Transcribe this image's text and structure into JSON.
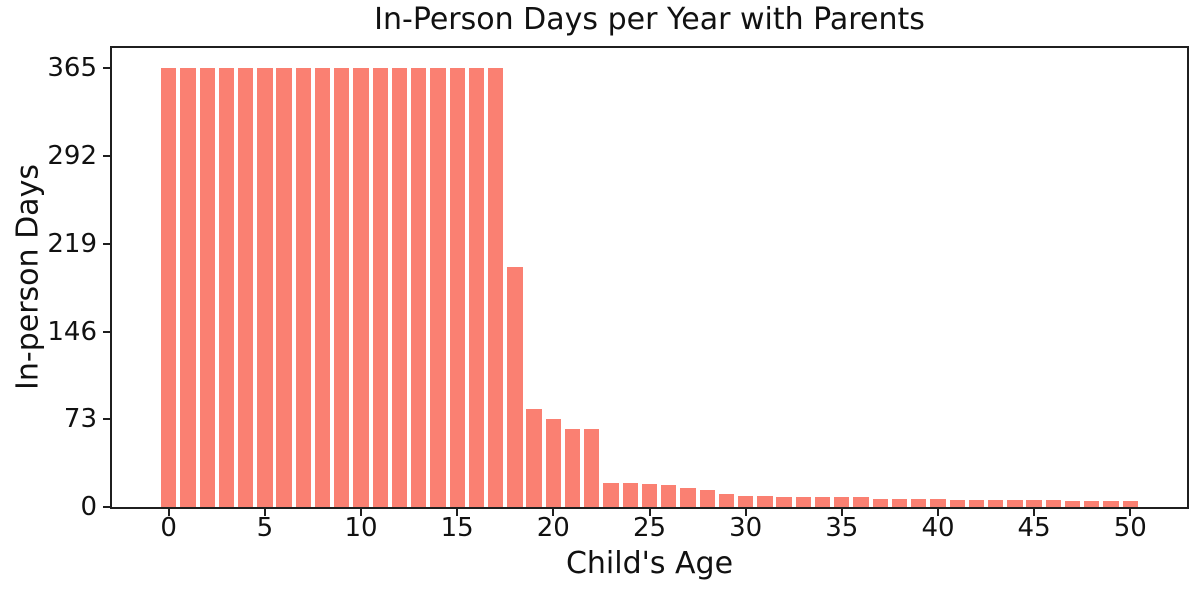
{
  "chart_data": {
    "type": "bar",
    "title": "In-Person Days per Year with Parents",
    "xlabel": "Child's Age",
    "ylabel": "In-person Days",
    "categories": [
      0,
      1,
      2,
      3,
      4,
      5,
      6,
      7,
      8,
      9,
      10,
      11,
      12,
      13,
      14,
      15,
      16,
      17,
      18,
      19,
      20,
      21,
      22,
      23,
      24,
      25,
      26,
      27,
      28,
      29,
      30,
      31,
      32,
      33,
      34,
      35,
      36,
      37,
      38,
      39,
      40,
      41,
      42,
      43,
      44,
      45,
      46,
      47,
      48,
      49,
      50
    ],
    "values": [
      365,
      365,
      365,
      365,
      365,
      365,
      365,
      365,
      365,
      365,
      365,
      365,
      365,
      365,
      365,
      365,
      365,
      365,
      200,
      82,
      73,
      65,
      65,
      20,
      20,
      19,
      18,
      16,
      14,
      11,
      9,
      9,
      8,
      8,
      8,
      8,
      8,
      7,
      7,
      7,
      7,
      6,
      6,
      6,
      6,
      6,
      6,
      5,
      5,
      5,
      5
    ],
    "xticks": [
      0,
      5,
      10,
      15,
      20,
      25,
      30,
      35,
      40,
      45,
      50
    ],
    "yticks": [
      0,
      73,
      146,
      219,
      292,
      365
    ],
    "xlim": [
      -2.95,
      52.95
    ],
    "ylim": [
      0,
      382
    ],
    "bar_color": "#FA8072",
    "axis_color": "#1f1f1f",
    "background_color": "#ffffff",
    "grid": false,
    "legend": null,
    "bar_width_fraction": 0.8
  }
}
